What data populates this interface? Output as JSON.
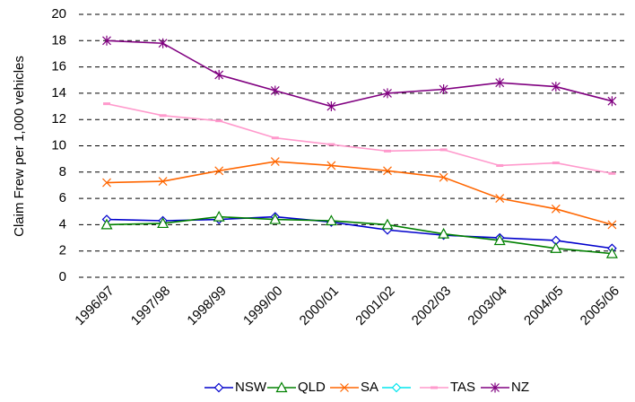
{
  "chart_data": {
    "type": "line",
    "y_label": "Claim Frew per 1,000 vehicles",
    "categories": [
      "1996/97",
      "1997/98",
      "1998/99",
      "1999/00",
      "2000/01",
      "2001/02",
      "2002/03",
      "2003/04",
      "2004/05",
      "2005/06"
    ],
    "series": [
      {
        "name": "NSW",
        "color": "#0000cc",
        "marker": "diamond",
        "values": [
          4.4,
          4.3,
          4.4,
          4.6,
          4.2,
          3.6,
          3.2,
          3.0,
          2.8,
          2.2
        ]
      },
      {
        "name": "QLD",
        "color": "#008000",
        "marker": "triangle",
        "values": [
          4.0,
          4.1,
          4.6,
          4.4,
          4.3,
          4.0,
          3.3,
          2.8,
          2.2,
          1.8
        ]
      },
      {
        "name": "SA",
        "color": "#ff6600",
        "marker": "x",
        "values": [
          7.2,
          7.3,
          8.1,
          8.8,
          8.5,
          8.1,
          7.6,
          6.0,
          5.2,
          4.0
        ]
      },
      {
        "name": null,
        "color": "#00e5ee",
        "marker": "diamond",
        "values": [
          null,
          null,
          null,
          null,
          null,
          null,
          null,
          null,
          null,
          null
        ]
      },
      {
        "name": "TAS",
        "color": "#ff99cc",
        "marker": "dash",
        "values": [
          13.2,
          12.3,
          11.9,
          10.6,
          10.1,
          9.6,
          9.7,
          8.5,
          8.7,
          7.9
        ]
      },
      {
        "name": "NZ",
        "color": "#800080",
        "marker": "star",
        "values": [
          18.0,
          17.8,
          15.4,
          14.2,
          13.0,
          14.0,
          14.3,
          14.8,
          14.5,
          13.4
        ]
      }
    ],
    "ylim": [
      0,
      20
    ],
    "yticks": [
      0,
      2,
      4,
      6,
      8,
      10,
      12,
      14,
      16,
      18,
      20
    ],
    "grid": true,
    "legend": "bottom"
  }
}
